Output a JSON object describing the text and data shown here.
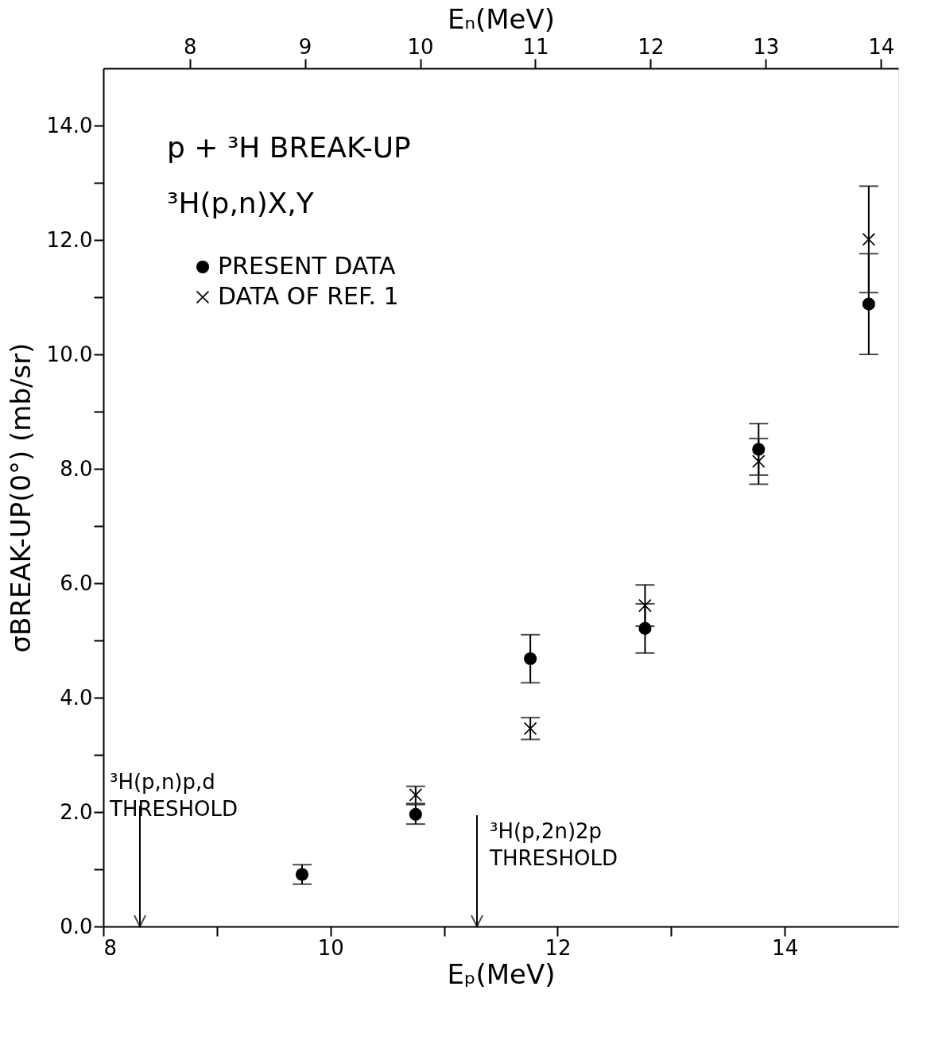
{
  "chart_data": {
    "type": "scatter",
    "xlabel": "Eₚ(MeV)",
    "ylabel": "σBREAK-UP(0°) (mb/sr)",
    "x2label": "Eₙ(MeV)",
    "xlim": [
      8,
      15
    ],
    "ylim": [
      0,
      15
    ],
    "x2lim": [
      7.25,
      14.15
    ],
    "xticks": [
      8,
      {
        "value": 9,
        "label": null
      },
      10,
      {
        "value": 11,
        "label": null
      },
      12,
      {
        "value": 13,
        "label": null
      },
      14
    ],
    "x2ticks": [
      8,
      9,
      10,
      11,
      12,
      13,
      14
    ],
    "yticks": [
      {
        "value": 0,
        "label": "0.0"
      },
      {
        "value": 1,
        "label": null
      },
      {
        "value": 2,
        "label": "2.0"
      },
      {
        "value": 3,
        "label": null
      },
      {
        "value": 4,
        "label": "4.0"
      },
      {
        "value": 5,
        "label": null
      },
      {
        "value": 6,
        "label": "6.0"
      },
      {
        "value": 7,
        "label": null
      },
      {
        "value": 8,
        "label": "8.0"
      },
      {
        "value": 9,
        "label": null
      },
      {
        "value": 10,
        "label": "10.0"
      },
      {
        "value": 11,
        "label": null
      },
      {
        "value": 12,
        "label": "12.0"
      },
      {
        "value": 13,
        "label": null
      },
      {
        "value": 14,
        "label": "14.0"
      }
    ],
    "grid": false,
    "legend": "top left",
    "series": [
      {
        "name": "PRESENT DATA",
        "color": "#000000",
        "marker": "circle",
        "x": [
          9.75,
          10.75,
          11.76,
          12.77,
          13.77,
          14.74
        ],
        "values": [
          0.91,
          1.96,
          4.68,
          5.21,
          8.34,
          10.88
        ],
        "errors": [
          0.17,
          0.17,
          0.42,
          0.43,
          0.45,
          0.88
        ]
      },
      {
        "name": "DATA OF REF. 1",
        "color": "#000000",
        "marker": "cross",
        "x": [
          10.75,
          11.76,
          12.77,
          13.77,
          14.74
        ],
        "values": [
          2.3,
          3.46,
          5.61,
          8.13,
          12.01
        ],
        "errors": [
          0.15,
          0.19,
          0.36,
          0.4,
          0.93
        ]
      }
    ],
    "annotations": [
      "p + ³H BREAK-UP",
      "³H(p,n)X,Y",
      "³H(p,n)p,d\nTHRESHOLD",
      "³H(p,2n)2p\nTHRESHOLD"
    ]
  }
}
